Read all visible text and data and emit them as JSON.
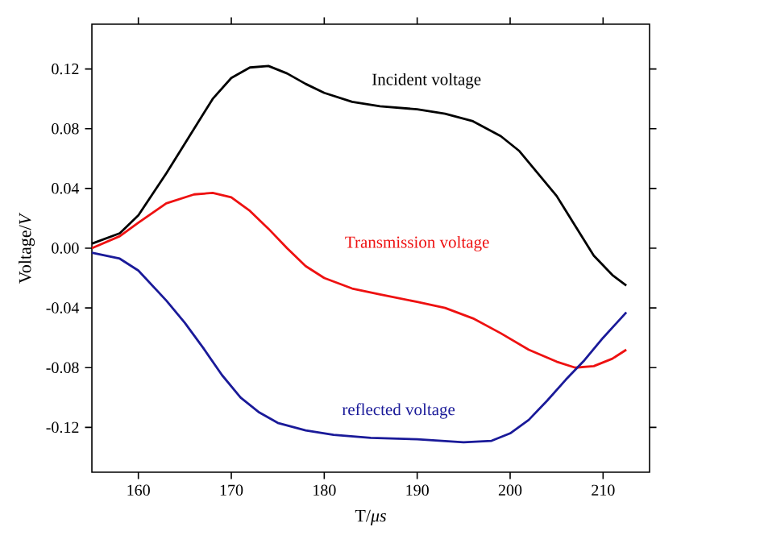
{
  "chart_data": {
    "type": "line",
    "xlabel": "T/*μs*",
    "ylabel": "Voltage/*V*",
    "xlim": [
      155,
      215
    ],
    "ylim": [
      -0.15,
      0.15
    ],
    "xticks": [
      160,
      170,
      180,
      190,
      200,
      210
    ],
    "yticks": [
      -0.12,
      -0.08,
      -0.04,
      {
        "value": 0,
        "label": "0.00"
      },
      0.04,
      0.08,
      0.12
    ],
    "legend": false,
    "grid": false,
    "marker": "none",
    "line_style": "solid",
    "series": [
      {
        "name": "Incident voltage",
        "color": "#000000",
        "x": [
          155,
          158,
          160,
          163,
          165,
          168,
          170,
          172,
          174,
          176,
          178,
          180,
          183,
          186,
          190,
          193,
          196,
          199,
          201,
          203,
          205,
          207,
          209,
          211,
          212.5
        ],
        "values": [
          0.003,
          0.01,
          0.022,
          0.05,
          0.07,
          0.1,
          0.114,
          0.121,
          0.122,
          0.117,
          0.11,
          0.104,
          0.098,
          0.095,
          0.093,
          0.09,
          0.085,
          0.075,
          0.065,
          0.05,
          0.035,
          0.015,
          -0.005,
          -0.018,
          -0.025
        ]
      },
      {
        "name": "Transmission voltage",
        "color": "#ee1111",
        "x": [
          155,
          158,
          160,
          163,
          166,
          168,
          170,
          172,
          174,
          176,
          178,
          180,
          183,
          186,
          190,
          193,
          196,
          199,
          202,
          205,
          207,
          209,
          211,
          212.5
        ],
        "values": [
          0.0,
          0.008,
          0.017,
          0.03,
          0.036,
          0.037,
          0.034,
          0.025,
          0.013,
          0.0,
          -0.012,
          -0.02,
          -0.027,
          -0.031,
          -0.036,
          -0.04,
          -0.047,
          -0.057,
          -0.068,
          -0.076,
          -0.08,
          -0.079,
          -0.074,
          -0.068
        ]
      },
      {
        "name": "reflected voltage",
        "color": "#1a1a99",
        "x": [
          155,
          158,
          160,
          163,
          165,
          167,
          169,
          171,
          173,
          175,
          178,
          181,
          185,
          190,
          195,
          198,
          200,
          202,
          204,
          206,
          208,
          210,
          212.5
        ],
        "values": [
          -0.003,
          -0.007,
          -0.015,
          -0.035,
          -0.05,
          -0.067,
          -0.085,
          -0.1,
          -0.11,
          -0.117,
          -0.122,
          -0.125,
          -0.127,
          -0.128,
          -0.13,
          -0.129,
          -0.124,
          -0.115,
          -0.102,
          -0.088,
          -0.075,
          -0.06,
          -0.043
        ]
      }
    ]
  }
}
